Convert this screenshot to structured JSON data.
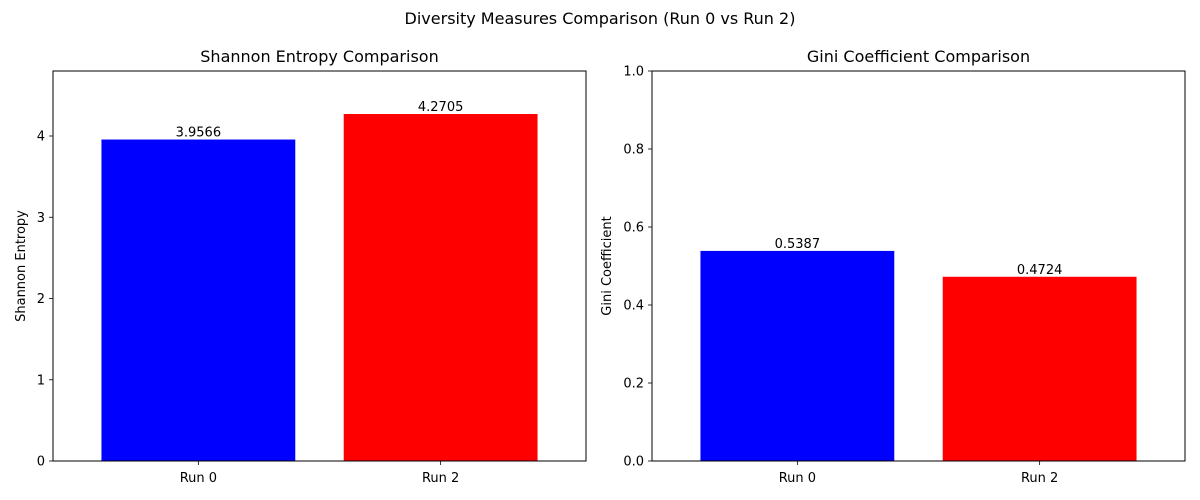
{
  "figure": {
    "suptitle": "Diversity Measures Comparison (Run 0 vs Run 2)"
  },
  "chart_data": [
    {
      "type": "bar",
      "title": "Shannon Entropy Comparison",
      "xlabel": "",
      "ylabel": "Shannon Entropy",
      "categories": [
        "Run 0",
        "Run 2"
      ],
      "values": [
        3.9566,
        4.2705
      ],
      "value_labels": [
        "3.9566",
        "4.2705"
      ],
      "colors": [
        "#0000ff",
        "#ff0000"
      ],
      "ylim": [
        0,
        4.8
      ],
      "yticks": [
        0,
        1,
        2,
        3,
        4
      ],
      "ytick_labels": [
        "0",
        "1",
        "2",
        "3",
        "4"
      ],
      "grid": false,
      "legend": "none"
    },
    {
      "type": "bar",
      "title": "Gini Coefficient Comparison",
      "xlabel": "",
      "ylabel": "Gini Coefficient",
      "categories": [
        "Run 0",
        "Run 2"
      ],
      "values": [
        0.5387,
        0.4724
      ],
      "value_labels": [
        "0.5387",
        "0.4724"
      ],
      "colors": [
        "#0000ff",
        "#ff0000"
      ],
      "ylim": [
        0,
        1.0
      ],
      "yticks": [
        0,
        0.2,
        0.4,
        0.6,
        0.8,
        1.0
      ],
      "ytick_labels": [
        "0.0",
        "0.2",
        "0.4",
        "0.6",
        "0.8",
        "1.0"
      ],
      "grid": false,
      "legend": "none"
    }
  ]
}
